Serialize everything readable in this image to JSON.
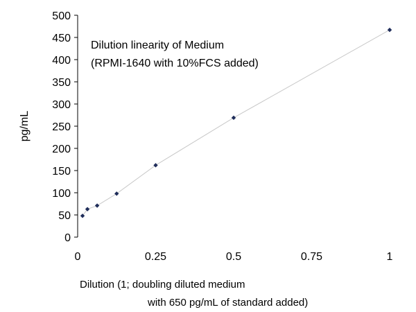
{
  "chart_data": {
    "type": "scatter",
    "title": "",
    "annotation": [
      "Dilution linearity of Medium",
      "(RPMI-1640 with 10%FCS added)"
    ],
    "xlabel": [
      "Dilution (1; doubling diluted medium",
      "with 650 pg/mL of standard added)"
    ],
    "ylabel": "pg/mL",
    "xlim": [
      0,
      1
    ],
    "ylim": [
      0,
      500
    ],
    "xticks": [
      0,
      0.25,
      0.5,
      0.75,
      1
    ],
    "xtick_labels": [
      "0",
      "0.25",
      "0.5",
      "0.75",
      "1"
    ],
    "yticks": [
      0,
      50,
      100,
      150,
      200,
      250,
      300,
      350,
      400,
      450,
      500
    ],
    "ytick_labels": [
      "0",
      "50",
      "100",
      "150",
      "200",
      "250",
      "300",
      "350",
      "400",
      "450",
      "500"
    ],
    "grid": false,
    "connected": true,
    "marker": "diamond",
    "colors": {
      "marker": "#1f2d5a",
      "line": "#c8c8c8",
      "axis": "#000000"
    },
    "series": [
      {
        "x": [
          0.015625,
          0.03125,
          0.0625,
          0.125,
          0.25,
          0.5,
          1
        ],
        "y": [
          48,
          63,
          71,
          98,
          162,
          269,
          467
        ]
      }
    ]
  }
}
